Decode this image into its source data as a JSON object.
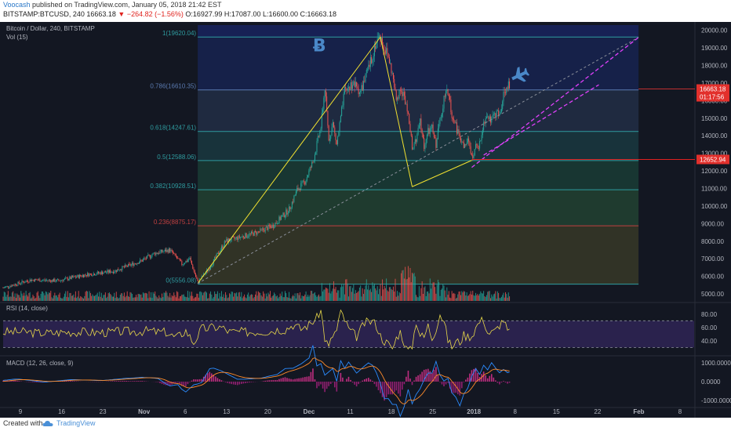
{
  "header": {
    "author": "Voocash",
    "published": " published on TradingView.com, January 05, 2018 21:42 EST",
    "symbol_line_start": "BITSTAMP:BTCUSD, 240  16663.18  ",
    "change": "▼ −264.82 (−1.56%)",
    "ohlc": " O:16927.99 H:17087.00 L:16600.00 C:16663.18"
  },
  "panes": {
    "price_title": "Bitcoin / Dollar, 240, BITSTAMP",
    "vol_title": "Vol (15)",
    "rsi_title": "RSI (14, close)",
    "macd_title": "MACD (12, 26, close, 9)"
  },
  "footer": {
    "created": "Created with",
    "brand": "TradingView"
  },
  "colors": {
    "background": "#131722",
    "up": "#26a69a",
    "down": "#ef5350",
    "fib_line": "#2f9ca0",
    "trend_line": "#f0e030",
    "path_line": "#e040fb",
    "annotation": "#4a88c8"
  },
  "chart_data": {
    "type": "candlestick",
    "x_ticks": [
      "9",
      "16",
      "23",
      "Nov",
      "6",
      "13",
      "20",
      "Dec",
      "11",
      "18",
      "25",
      "2018",
      "8",
      "15",
      "22",
      "Feb",
      "8"
    ],
    "y_ticks": [
      20000,
      19000,
      18000,
      17000,
      16000,
      15000,
      14000,
      13000,
      12000,
      11000,
      10000,
      9000,
      8000,
      7000,
      6000,
      5000
    ],
    "ylim": [
      4600,
      20300
    ],
    "price_badges": [
      {
        "value": "16663.18",
        "time": "01:17:56"
      },
      {
        "value": "12652.94"
      }
    ],
    "fib_levels": [
      {
        "ratio": "1",
        "value": 19620.04,
        "label": "1(19620.04)"
      },
      {
        "ratio": "0.786",
        "value": 16610.35,
        "label": "0.786(16610.35)"
      },
      {
        "ratio": "0.618",
        "value": 14247.61,
        "label": "0.618(14247.61)"
      },
      {
        "ratio": "0.5",
        "value": 12588.06,
        "label": "0.5(12588.06)"
      },
      {
        "ratio": "0.382",
        "value": 10928.51,
        "label": "0.382(10928.51)"
      },
      {
        "ratio": "0.236",
        "value": 8875.17,
        "label": "0.236(8875.17)"
      },
      {
        "ratio": "0",
        "value": 5556.08,
        "label": "0(5556.08)"
      }
    ],
    "price_path": [
      [
        0.0,
        5350
      ],
      [
        7.0,
        5800
      ],
      [
        14.0,
        5750
      ],
      [
        21.0,
        6100
      ],
      [
        28.0,
        6300
      ],
      [
        35.0,
        6900
      ],
      [
        38.0,
        7300
      ],
      [
        42.0,
        7500
      ],
      [
        45.0,
        6700
      ],
      [
        47.0,
        7000
      ],
      [
        49.0,
        5650
      ],
      [
        52.0,
        6500
      ],
      [
        56.0,
        8000
      ],
      [
        60.0,
        8250
      ],
      [
        64.0,
        8500
      ],
      [
        68.0,
        8900
      ],
      [
        72.0,
        9800
      ],
      [
        74.0,
        10900
      ],
      [
        76.0,
        11400
      ],
      [
        78.0,
        12500
      ],
      [
        80.0,
        14500
      ],
      [
        81.0,
        16700
      ],
      [
        82.0,
        13800
      ],
      [
        83.0,
        14700
      ],
      [
        84.0,
        13500
      ],
      [
        86.0,
        16500
      ],
      [
        88.0,
        17000
      ],
      [
        90.0,
        16500
      ],
      [
        92.0,
        17800
      ],
      [
        94.0,
        19400
      ],
      [
        95.0,
        19620
      ],
      [
        96.0,
        19000
      ],
      [
        97.0,
        18500
      ],
      [
        98.0,
        17500
      ],
      [
        99.0,
        16000
      ],
      [
        100.0,
        16800
      ],
      [
        102.0,
        15500
      ],
      [
        103.0,
        13200
      ],
      [
        104.0,
        13700
      ],
      [
        105.0,
        14800
      ],
      [
        106.0,
        13400
      ],
      [
        107.0,
        14200
      ],
      [
        108.0,
        14400
      ],
      [
        109.0,
        13500
      ],
      [
        110.0,
        15000
      ],
      [
        111.0,
        16100
      ],
      [
        112.0,
        16500
      ],
      [
        113.0,
        15200
      ],
      [
        114.0,
        14500
      ],
      [
        115.0,
        14000
      ],
      [
        116.0,
        13300
      ],
      [
        117.0,
        13700
      ],
      [
        118.0,
        12800
      ],
      [
        119.0,
        13300
      ],
      [
        120.0,
        13500
      ],
      [
        121.0,
        14800
      ],
      [
        122.0,
        15300
      ],
      [
        123.0,
        14800
      ],
      [
        124.0,
        15300
      ],
      [
        125.0,
        15100
      ],
      [
        126.0,
        16400
      ],
      [
        127.0,
        16900
      ],
      [
        127.7,
        16663
      ]
    ],
    "trend_lines": [
      {
        "from": [
          49.0,
          5600
        ],
        "to": [
          95.0,
          19620
        ]
      },
      {
        "from": [
          95.0,
          19620
        ],
        "to": [
          103.0,
          11100
        ]
      },
      {
        "from": [
          103.0,
          11100
        ],
        "to": [
          118.0,
          12600
        ]
      },
      {
        "from": [
          49.0,
          5600
        ],
        "to": [
          160.0,
          19600
        ]
      }
    ],
    "rsi": {
      "ylim": [
        20,
        95
      ],
      "y_ticks": [
        80,
        60,
        40
      ],
      "band": [
        30,
        70
      ]
    },
    "macd": {
      "ylim": [
        -1300,
        1300
      ],
      "y_ticks": [
        "1000.0000",
        "0.0000",
        "-1000.0000"
      ]
    }
  }
}
